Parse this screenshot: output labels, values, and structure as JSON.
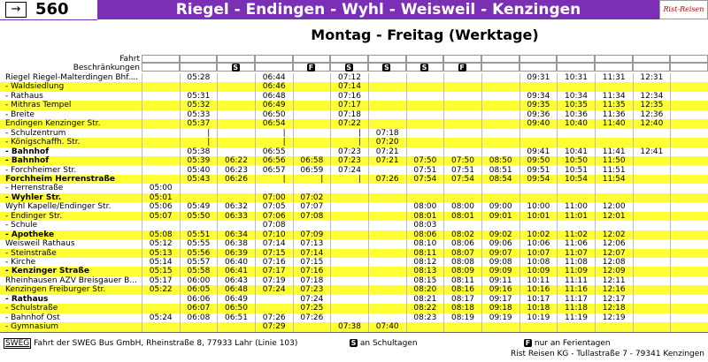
{
  "header": {
    "line": "560",
    "title": "Riegel - Endingen - Wyhl - Weisweil - Kenzingen",
    "logo": "Rist-Reisen"
  },
  "subtitle": "Montag - Freitag (Werktage)",
  "table": {
    "fahrt_label": "Fahrt",
    "restrictions_label": "Beschränkungen",
    "restrictions": [
      null,
      null,
      "S",
      null,
      "F",
      "S",
      "S",
      "S",
      "F",
      null,
      null,
      null,
      null,
      null,
      null
    ],
    "rows": [
      {
        "stop": "Riegel Riegel-Malterdingen Bhf....",
        "bold": false,
        "times": [
          null,
          "05:28",
          null,
          "06:44",
          null,
          "07:12",
          null,
          null,
          null,
          null,
          "09:31",
          "10:31",
          "11:31",
          "12:31",
          null
        ]
      },
      {
        "stop": "- Waldsiedlung",
        "bold": false,
        "times": [
          null,
          null,
          null,
          "06:46",
          null,
          "07:14",
          null,
          null,
          null,
          null,
          null,
          null,
          null,
          null,
          null
        ]
      },
      {
        "stop": "- Rathaus",
        "bold": false,
        "times": [
          null,
          "05:31",
          null,
          "06:48",
          null,
          "07:16",
          null,
          null,
          null,
          null,
          "09:34",
          "10:34",
          "11:34",
          "12:34",
          null
        ]
      },
      {
        "stop": "- Mithras Tempel",
        "bold": false,
        "times": [
          null,
          "05:32",
          null,
          "06:49",
          null,
          "07:17",
          null,
          null,
          null,
          null,
          "09:35",
          "10:35",
          "11:35",
          "12:35",
          null
        ]
      },
      {
        "stop": "- Breite",
        "bold": false,
        "times": [
          null,
          "05:33",
          null,
          "06:50",
          null,
          "07:18",
          null,
          null,
          null,
          null,
          "09:36",
          "10:36",
          "11:36",
          "12:36",
          null
        ]
      },
      {
        "stop": "Endingen Kenzinger Str.",
        "bold": false,
        "times": [
          null,
          "05:37",
          null,
          "06:54",
          null,
          "07:22",
          null,
          null,
          null,
          null,
          "09:40",
          "10:40",
          "11:40",
          "12:40",
          null
        ]
      },
      {
        "stop": "- Schulzentrum",
        "bold": false,
        "times": [
          null,
          "|",
          null,
          "|",
          null,
          "|",
          "07:18",
          null,
          null,
          null,
          null,
          null,
          null,
          null,
          null
        ]
      },
      {
        "stop": "- Königschaffh. Str.",
        "bold": false,
        "times": [
          null,
          "|",
          null,
          "|",
          null,
          "|",
          "07:20",
          null,
          null,
          null,
          null,
          null,
          null,
          null,
          null
        ]
      },
      {
        "stop": "- Bahnhof",
        "bold": true,
        "times": [
          null,
          "05:38",
          null,
          "06:55",
          null,
          "07:23",
          "07:21",
          null,
          null,
          null,
          "09:41",
          "10:41",
          "11:41",
          "12:41",
          null
        ]
      },
      {
        "stop": "- Bahnhof",
        "bold": true,
        "times": [
          null,
          "05:39",
          "06:22",
          "06:56",
          "06:58",
          "07:23",
          "07:21",
          "07:50",
          "07:50",
          "08:50",
          "09:50",
          "10:50",
          "11:50",
          null,
          null
        ]
      },
      {
        "stop": "- Forchheimer Str.",
        "bold": false,
        "times": [
          null,
          "05:40",
          "06:23",
          "06:57",
          "06:59",
          "07:24",
          null,
          "07:51",
          "07:51",
          "08:51",
          "09:51",
          "10:51",
          "11:51",
          null,
          null
        ]
      },
      {
        "stop": "Forchheim Herrenstraße",
        "bold": true,
        "times": [
          null,
          "05:43",
          "06:26",
          "|",
          "|",
          "|",
          "07:26",
          "07:54",
          "07:54",
          "08:54",
          "09:54",
          "10:54",
          "11:54",
          null,
          null
        ]
      },
      {
        "stop": "- Herrenstraße",
        "bold": false,
        "times": [
          "05:00",
          null,
          null,
          null,
          null,
          null,
          null,
          null,
          null,
          null,
          null,
          null,
          null,
          null,
          null
        ]
      },
      {
        "stop": "- Wyhler Str.",
        "bold": true,
        "times": [
          "05:01",
          null,
          null,
          "07:00",
          "07:02",
          null,
          null,
          null,
          null,
          null,
          null,
          null,
          null,
          null,
          null
        ]
      },
      {
        "stop": "Wyhl Kapelle/Endinger Str.",
        "bold": false,
        "times": [
          "05:06",
          "05:49",
          "06:32",
          "07:05",
          "07:07",
          null,
          null,
          "08:00",
          "08:00",
          "09:00",
          "10:00",
          "11:00",
          "12:00",
          null,
          null
        ]
      },
      {
        "stop": "- Endinger Str.",
        "bold": false,
        "times": [
          "05:07",
          "05:50",
          "06:33",
          "07:06",
          "07:08",
          null,
          null,
          "08:01",
          "08:01",
          "09:01",
          "10:01",
          "11:01",
          "12:01",
          null,
          null
        ]
      },
      {
        "stop": "- Schule",
        "bold": false,
        "times": [
          null,
          null,
          null,
          "07:08",
          null,
          null,
          null,
          "08:03",
          null,
          null,
          null,
          null,
          null,
          null,
          null
        ]
      },
      {
        "stop": "- Apotheke",
        "bold": true,
        "times": [
          "05:08",
          "05:51",
          "06:34",
          "07:10",
          "07:09",
          null,
          null,
          "08:06",
          "08:02",
          "09:02",
          "10:02",
          "11:02",
          "12:02",
          null,
          null
        ]
      },
      {
        "stop": "Weisweil Rathaus",
        "bold": false,
        "times": [
          "05:12",
          "05:55",
          "06:38",
          "07:14",
          "07:13",
          null,
          null,
          "08:10",
          "08:06",
          "09:06",
          "10:06",
          "11:06",
          "12:06",
          null,
          null
        ]
      },
      {
        "stop": "- Steinstraße",
        "bold": false,
        "times": [
          "05:13",
          "05:56",
          "06:39",
          "07:15",
          "07:14",
          null,
          null,
          "08:11",
          "08:07",
          "09:07",
          "10:07",
          "11:07",
          "12:07",
          null,
          null
        ]
      },
      {
        "stop": "- Kirche",
        "bold": false,
        "times": [
          "05:14",
          "05:57",
          "06:40",
          "07:16",
          "07:15",
          null,
          null,
          "08:12",
          "08:08",
          "09:08",
          "10:08",
          "11:08",
          "12:08",
          null,
          null
        ]
      },
      {
        "stop": "- Kenzinger Straße",
        "bold": true,
        "times": [
          "05:15",
          "05:58",
          "06:41",
          "07:17",
          "07:16",
          null,
          null,
          "08:13",
          "08:09",
          "09:09",
          "10:09",
          "11:09",
          "12:09",
          null,
          null
        ]
      },
      {
        "stop": "Rheinhausen AZV Breisgauer B...",
        "bold": false,
        "times": [
          "05:17",
          "06:00",
          "06:43",
          "07:19",
          "07:18",
          null,
          null,
          "08:15",
          "08:11",
          "09:11",
          "10:11",
          "11:11",
          "12:11",
          null,
          null
        ]
      },
      {
        "stop": "Kenzingen Freiburger Str.",
        "bold": false,
        "times": [
          "05:22",
          "06:05",
          "06:48",
          "07:24",
          "07:23",
          null,
          null,
          "08:20",
          "08:16",
          "09:16",
          "10:16",
          "11:16",
          "12:16",
          null,
          null
        ]
      },
      {
        "stop": "- Rathaus",
        "bold": true,
        "times": [
          null,
          "06:06",
          "06:49",
          null,
          "07:24",
          null,
          null,
          "08:21",
          "08:17",
          "09:17",
          "10:17",
          "11:17",
          "12:17",
          null,
          null
        ]
      },
      {
        "stop": "- Schulstraße",
        "bold": false,
        "times": [
          null,
          "06:07",
          "06:50",
          null,
          "07:25",
          null,
          null,
          "08:22",
          "08:18",
          "09:18",
          "10:18",
          "11:18",
          "12:18",
          null,
          null
        ]
      },
      {
        "stop": "- Bahnhof Ost",
        "bold": false,
        "times": [
          "05:24",
          "06:08",
          "06:51",
          "07:26",
          "07:26",
          null,
          null,
          "08:23",
          "08:19",
          "09:19",
          "10:19",
          "11:19",
          "12:19",
          null,
          null
        ]
      },
      {
        "stop": "- Gymnasium",
        "bold": false,
        "times": [
          null,
          null,
          null,
          "07:29",
          null,
          "07:38",
          "07:40",
          null,
          null,
          null,
          null,
          null,
          null,
          null,
          null
        ]
      }
    ]
  },
  "footer": {
    "sweg": "SWEG",
    "sweg_text": "Fahrt der SWEG Bus GmbH, Rheinstraße 8, 77933 Lahr (Linie 103)",
    "s": "S",
    "s_text": "an Schultagen",
    "f": "F",
    "f_text": "nur an Ferientagen",
    "company": "Rist Reisen KG - Tullastraße 7 - 79341 Kenzingen"
  }
}
